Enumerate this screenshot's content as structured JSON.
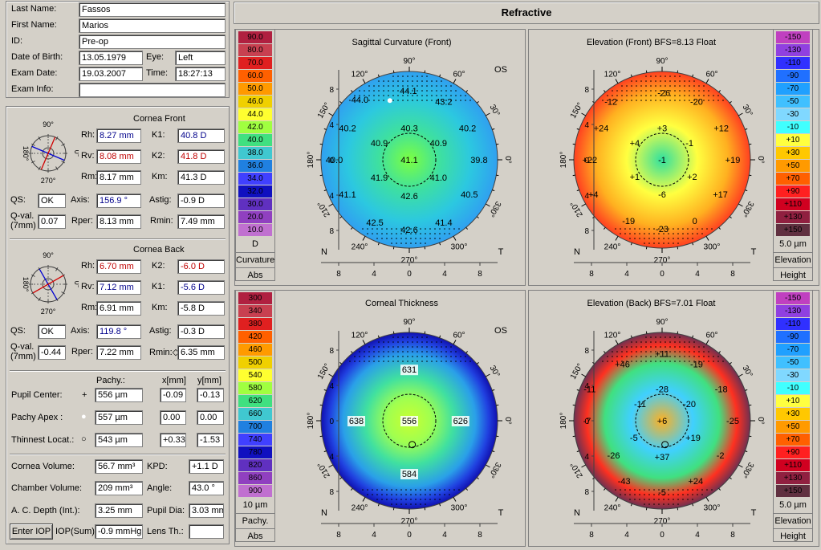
{
  "patient": {
    "last_name_label": "Last Name:",
    "last_name": "Fassos",
    "first_name_label": "First Name:",
    "first_name": "Marios",
    "id_label": "ID:",
    "id": "Pre-op",
    "dob_label": "Date of Birth:",
    "dob": "13.05.1979",
    "eye_label": "Eye:",
    "eye": "Left",
    "exam_date_label": "Exam Date:",
    "exam_date": "19.03.2007",
    "time_label": "Time:",
    "time": "18:27:13",
    "exam_info_label": "Exam Info:",
    "exam_info": ""
  },
  "front": {
    "title": "Cornea Front",
    "rh_label": "Rh:",
    "rh": "8.27 mm",
    "rv_label": "Rv:",
    "rv": "8.08 mm",
    "rm_label": "Rm:",
    "rm": "8.17 mm",
    "k1_label": "K1:",
    "k1": "40.8 D",
    "k2_label": "K2:",
    "k2": "41.8 D",
    "km_label": "Km:",
    "km": "41.3 D",
    "qs_label": "QS:",
    "qs": "OK",
    "axis_label": "Axis:",
    "axis": "156.9 °",
    "astig_label": "Astig:",
    "astig": "-0.9 D",
    "qval_label1": "Q-val.",
    "qval_label2": "(7mm)",
    "qval": "0.07",
    "rper_label": "Rper:",
    "rper": "8.13 mm",
    "rmin_label": "Rmin:",
    "rmin": "7.49 mm",
    "axis_deg": 156.9
  },
  "back": {
    "title": "Cornea Back",
    "rh_label": "Rh:",
    "rh": "6.70 mm",
    "rv_label": "Rv:",
    "rv": "7.12 mm",
    "rm_label": "Rm:",
    "rm": "6.91 mm",
    "k2_label": "K2:",
    "k2": "-6.0 D",
    "k1_label": "K1:",
    "k1": "-5.6 D",
    "km_label": "Km:",
    "km": "-5.8 D",
    "qs_label": "QS:",
    "qs": "OK",
    "axis_label": "Axis:",
    "axis": "119.8 °",
    "astig_label": "Astig:",
    "astig": "-0.3 D",
    "qval_label1": "Q-val.",
    "qval_label2": "(7mm)",
    "qval": "-0.44",
    "rper_label": "Rper:",
    "rper": "7.22 mm",
    "rmin_label": "Rmin:◇",
    "rmin": "6.35 mm",
    "axis_deg": 119.8
  },
  "compass": {
    "t90": "90°",
    "t270": "270°",
    "t180": "180°",
    "t0": "0°"
  },
  "pachy": {
    "col_pachy": "Pachy.:",
    "col_x": "x[mm]",
    "col_y": "y[mm]",
    "pupil_label": "Pupil Center:",
    "pupil_sym": "+",
    "pupil_val": "556 µm",
    "pupil_x": "-0.09",
    "pupil_y": "-0.13",
    "apex_label": "Pachy Apex :",
    "apex_sym": "●",
    "apex_val": "557 µm",
    "apex_x": "0.00",
    "apex_y": "0.00",
    "thin_label": "Thinnest Locat.:",
    "thin_sym": "○",
    "thin_val": "543 µm",
    "thin_x": "+0.33",
    "thin_y": "-1.53"
  },
  "volume": {
    "cv_label": "Cornea Volume:",
    "cv": "56.7 mm³",
    "kpd_label": "KPD:",
    "kpd": "+1.1 D",
    "chv_label": "Chamber Volume:",
    "chv": "209 mm³",
    "angle_label": "Angle:",
    "angle": "43.0 °",
    "acd_label": "A. C. Depth (Int.):",
    "acd": "3.25 mm",
    "pupil_label": "Pupil Dia:",
    "pupil": "3.03 mm",
    "enter_iop": "Enter IOP",
    "iop_label": "IOP(Sum):",
    "iop": "-0.9 mmHg",
    "lens_label": "Lens Th.:",
    "lens": ""
  },
  "title": "Refractive",
  "maps": [
    {
      "title": "Sagittal Curvature (Front)",
      "os": "OS",
      "n": "N",
      "t": "T",
      "a90": "90°",
      "a120": "120°",
      "a150": "150°",
      "a180": "180°",
      "a210": "210°",
      "a240": "240°",
      "a270": "270°",
      "a300": "300°",
      "a330": "330°",
      "a60": "60°",
      "a30": "30°",
      "a0": "0°",
      "labels": [
        {
          "v": "44.0",
          "x": -5.6,
          "y": 6.8
        },
        {
          "v": "44.1",
          "x": -0.1,
          "y": 7.8
        },
        {
          "v": "43.2",
          "x": 3.9,
          "y": 6.6
        },
        {
          "v": "40.2",
          "x": -7.0,
          "y": 3.6
        },
        {
          "v": "40.3",
          "x": 0.0,
          "y": 3.6
        },
        {
          "v": "40.2",
          "x": 6.6,
          "y": 3.6
        },
        {
          "v": "40.9",
          "x": -3.4,
          "y": 1.9
        },
        {
          "v": "40.9",
          "x": 3.3,
          "y": 1.9
        },
        {
          "v": "40.0",
          "x": -8.5,
          "y": 0.0
        },
        {
          "v": "41.1",
          "x": 0.0,
          "y": 0.0
        },
        {
          "v": "39.8",
          "x": 7.9,
          "y": 0.0
        },
        {
          "v": "41.9",
          "x": -3.4,
          "y": -2.0
        },
        {
          "v": "41.0",
          "x": 3.3,
          "y": -2.0
        },
        {
          "v": "41.1",
          "x": -7.0,
          "y": -3.9
        },
        {
          "v": "42.6",
          "x": 0.0,
          "y": -4.1
        },
        {
          "v": "40.5",
          "x": 6.8,
          "y": -3.9
        },
        {
          "v": "42.5",
          "x": -3.9,
          "y": -7.1
        },
        {
          "v": "42.6",
          "x": 0.0,
          "y": -7.9
        },
        {
          "v": "41.4",
          "x": 3.9,
          "y": -7.1
        }
      ]
    },
    {
      "title": "Elevation (Front)  BFS=8.13 Float",
      "os": "",
      "n": "N",
      "t": "T",
      "a90": "90°",
      "a120": "120°",
      "a150": "150°",
      "a180": "180°",
      "a210": "210°",
      "a240": "240°",
      "a270": "270°",
      "a300": "300°",
      "a330": "330°",
      "a60": "60°",
      "a30": "30°",
      "a0": "0°",
      "labels": [
        {
          "v": "-26",
          "x": 0.2,
          "y": 7.6
        },
        {
          "v": "-12",
          "x": -5.8,
          "y": 6.6
        },
        {
          "v": "-20",
          "x": 3.9,
          "y": 6.6
        },
        {
          "v": "+24",
          "x": -6.9,
          "y": 3.6
        },
        {
          "v": "+3",
          "x": 0.0,
          "y": 3.6
        },
        {
          "v": "+12",
          "x": 6.7,
          "y": 3.6
        },
        {
          "v": "+4",
          "x": -3.1,
          "y": 1.9
        },
        {
          "v": "-1",
          "x": 3.1,
          "y": 1.9
        },
        {
          "v": "+22",
          "x": -8.2,
          "y": 0.0
        },
        {
          "v": "-1",
          "x": 0.0,
          "y": 0.0
        },
        {
          "v": "+19",
          "x": 8.0,
          "y": 0.0
        },
        {
          "v": "+1",
          "x": -3.1,
          "y": -1.9
        },
        {
          "v": "+2",
          "x": 3.4,
          "y": -1.9
        },
        {
          "v": "+4",
          "x": -7.8,
          "y": -3.9
        },
        {
          "v": "-6",
          "x": 0.0,
          "y": -3.9
        },
        {
          "v": "+17",
          "x": 6.6,
          "y": -3.9
        },
        {
          "v": "-19",
          "x": -3.8,
          "y": -6.9
        },
        {
          "v": "-23",
          "x": 0.0,
          "y": -7.8
        },
        {
          "v": "0",
          "x": 3.7,
          "y": -6.9
        }
      ]
    },
    {
      "title": "Corneal Thickness",
      "os": "OS",
      "n": "N",
      "t": "T",
      "a90": "90°",
      "a120": "120°",
      "a150": "150°",
      "a180": "180°",
      "a210": "210°",
      "a240": "240°",
      "a270": "270°",
      "a300": "300°",
      "a330": "330°",
      "a60": "60°",
      "a30": "30°",
      "a0": "0°",
      "labels": [
        {
          "v": "631",
          "x": 0.0,
          "y": 5.8
        },
        {
          "v": "638",
          "x": -6.0,
          "y": 0.0
        },
        {
          "v": "556",
          "x": 0.0,
          "y": 0.0
        },
        {
          "v": "626",
          "x": 5.8,
          "y": 0.0
        },
        {
          "v": "584",
          "x": 0.0,
          "y": -6.0
        }
      ]
    },
    {
      "title": "Elevation (Back)  BFS=7.01 Float",
      "os": "",
      "n": "N",
      "t": "T",
      "a90": "90°",
      "a120": "120°",
      "a150": "150°",
      "a180": "180°",
      "a210": "210°",
      "a240": "240°",
      "a270": "270°",
      "a300": "300°",
      "a330": "330°",
      "a60": "60°",
      "a30": "30°",
      "a0": "0°",
      "labels": [
        {
          "v": "+11",
          "x": 0.0,
          "y": 7.6
        },
        {
          "v": "+46",
          "x": -4.5,
          "y": 6.4
        },
        {
          "v": "-19",
          "x": 3.9,
          "y": 6.4
        },
        {
          "v": "-11",
          "x": -8.2,
          "y": 3.6
        },
        {
          "v": "-28",
          "x": 0.0,
          "y": 3.6
        },
        {
          "v": "-18",
          "x": 6.7,
          "y": 3.6
        },
        {
          "v": "-11",
          "x": -2.5,
          "y": 1.9
        },
        {
          "v": "-20",
          "x": 3.1,
          "y": 1.9
        },
        {
          "v": "-7",
          "x": -8.5,
          "y": 0.0
        },
        {
          "v": "+6",
          "x": 0.0,
          "y": 0.0
        },
        {
          "v": "-25",
          "x": 8.0,
          "y": 0.0
        },
        {
          "v": "-5",
          "x": -3.2,
          "y": -1.9
        },
        {
          "v": "+19",
          "x": 3.5,
          "y": -1.9
        },
        {
          "v": "-26",
          "x": -5.5,
          "y": -3.9
        },
        {
          "v": "+37",
          "x": 0.0,
          "y": -4.1
        },
        {
          "v": "-2",
          "x": 6.6,
          "y": -3.9
        },
        {
          "v": "-43",
          "x": -4.3,
          "y": -6.8
        },
        {
          "v": "+24",
          "x": 3.8,
          "y": -6.8
        },
        {
          "v": "-5",
          "x": 0.0,
          "y": -8.1
        }
      ]
    }
  ],
  "scales": [
    {
      "values": [
        "90.0",
        "80.0",
        "70.0",
        "60.0",
        "50.0",
        "46.0",
        "44.0",
        "42.0",
        "40.0",
        "38.0",
        "36.0",
        "34.0",
        "32.0",
        "30.0",
        "20.0",
        "10.0"
      ],
      "colors": [
        "#b02040",
        "#c84050",
        "#e02020",
        "#ff6000",
        "#ff9a00",
        "#f0d000",
        "#ffff30",
        "#a0ff40",
        "#40e080",
        "#40c8d0",
        "#2080e0",
        "#4040ff",
        "#1010c0",
        "#6030c0",
        "#9040c0",
        "#c070d0"
      ],
      "unit": "D",
      "foot1": "Curvature",
      "foot2": "Abs"
    },
    {
      "values": [
        "-150",
        "-130",
        "-110",
        "-90",
        "-70",
        "-50",
        "-30",
        "-10",
        "+10",
        "+30",
        "+50",
        "+70",
        "+90",
        "+110",
        "+130",
        "+150"
      ],
      "colors": [
        "#c040c0",
        "#9040e0",
        "#3030ff",
        "#2070ff",
        "#20a0ff",
        "#40c0ff",
        "#80d8ff",
        "#40ffff",
        "#ffff40",
        "#ffc800",
        "#ff9a00",
        "#ff6000",
        "#ff2020",
        "#d00020",
        "#902040",
        "#603040"
      ],
      "unit": "5.0 µm",
      "foot1": "Elevation",
      "foot2": "Height"
    },
    {
      "values": [
        "300",
        "340",
        "380",
        "420",
        "460",
        "500",
        "540",
        "580",
        "620",
        "660",
        "700",
        "740",
        "780",
        "820",
        "860",
        "900"
      ],
      "colors": [
        "#b02040",
        "#c84050",
        "#e02020",
        "#ff6000",
        "#ff9a00",
        "#f0d000",
        "#ffff30",
        "#a0ff40",
        "#40e080",
        "#40c8d0",
        "#2080e0",
        "#4040ff",
        "#1010c0",
        "#6030c0",
        "#9040c0",
        "#c070d0"
      ],
      "unit": "10 µm",
      "foot1": "Pachy.",
      "foot2": "Abs"
    },
    {
      "values": [
        "-150",
        "-130",
        "-110",
        "-90",
        "-70",
        "-50",
        "-30",
        "-10",
        "+10",
        "+30",
        "+50",
        "+70",
        "+90",
        "+110",
        "+130",
        "+150"
      ],
      "colors": [
        "#c040c0",
        "#9040e0",
        "#3030ff",
        "#2070ff",
        "#20a0ff",
        "#40c0ff",
        "#80d8ff",
        "#40ffff",
        "#ffff40",
        "#ffc800",
        "#ff9a00",
        "#ff6000",
        "#ff2020",
        "#d00020",
        "#902040",
        "#603040"
      ],
      "unit": "5.0 µm",
      "foot1": "Elevation",
      "foot2": "Height"
    }
  ],
  "axis_ticks": {
    "x": [
      "8",
      "4",
      "0",
      "4",
      "8"
    ],
    "y": [
      "8",
      "4",
      "0",
      "4",
      "8"
    ]
  }
}
